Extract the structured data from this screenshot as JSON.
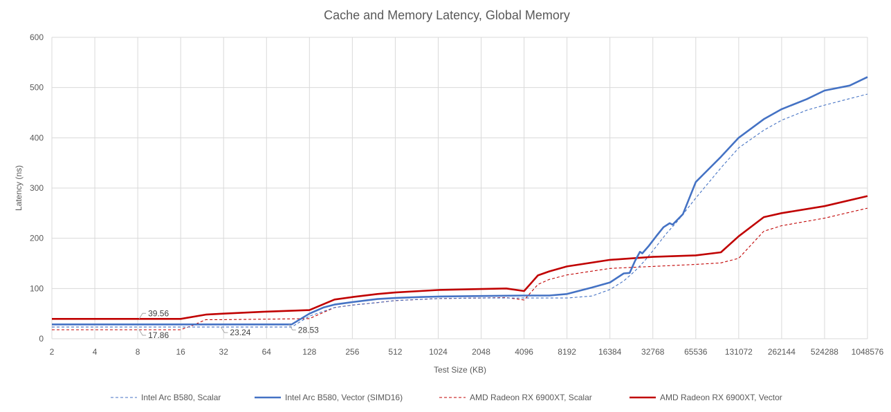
{
  "chart_data": {
    "type": "line",
    "title": "Cache and Memory Latency, Global Memory",
    "xlabel": "Test Size (KB)",
    "ylabel": "Latency (ns)",
    "x_scale": "log2",
    "xlim": [
      2,
      1048576
    ],
    "ylim": [
      0,
      600
    ],
    "x_ticks": [
      2,
      4,
      8,
      16,
      32,
      64,
      128,
      256,
      512,
      1024,
      2048,
      4096,
      8192,
      16384,
      32768,
      65536,
      131072,
      262144,
      524288,
      1048576
    ],
    "x_tick_labels": [
      "2",
      "4",
      "8",
      "16",
      "32",
      "64",
      "128",
      "256",
      "512",
      "1024",
      "2048",
      "4096",
      "8192",
      "16384",
      "32768",
      "65536",
      "131072",
      "262144",
      "524288",
      "1048576"
    ],
    "y_ticks": [
      0,
      100,
      200,
      300,
      400,
      500,
      600
    ],
    "y_tick_labels": [
      "0",
      "100",
      "200",
      "300",
      "400",
      "500",
      "600"
    ],
    "grid": true,
    "legend_position": "bottom",
    "series": [
      {
        "name": "Intel Arc B580, Scalar",
        "color": "#4472c4",
        "dash": "dashed",
        "width": "thin",
        "points": [
          [
            2,
            23.24
          ],
          [
            16,
            23.24
          ],
          [
            32,
            23.24
          ],
          [
            64,
            23.24
          ],
          [
            96,
            23.24
          ],
          [
            128,
            45
          ],
          [
            192,
            62
          ],
          [
            256,
            67
          ],
          [
            384,
            72
          ],
          [
            512,
            76
          ],
          [
            1024,
            80
          ],
          [
            2048,
            81
          ],
          [
            4096,
            81
          ],
          [
            8192,
            81
          ],
          [
            12288,
            85
          ],
          [
            16384,
            98
          ],
          [
            20480,
            115
          ],
          [
            24576,
            135
          ],
          [
            28672,
            155
          ],
          [
            32768,
            175
          ],
          [
            40960,
            210
          ],
          [
            49152,
            235
          ],
          [
            65536,
            280
          ],
          [
            98304,
            340
          ],
          [
            131072,
            380
          ],
          [
            196608,
            415
          ],
          [
            262144,
            435
          ],
          [
            393216,
            455
          ],
          [
            524288,
            465
          ],
          [
            786432,
            478
          ],
          [
            1048576,
            487
          ]
        ]
      },
      {
        "name": "Intel Arc B580, Vector (SIMD16)",
        "color": "#4472c4",
        "dash": "solid",
        "width": "thick",
        "points": [
          [
            2,
            28.53
          ],
          [
            16,
            28.53
          ],
          [
            32,
            28.53
          ],
          [
            64,
            28.53
          ],
          [
            96,
            28.53
          ],
          [
            128,
            50
          ],
          [
            160,
            62
          ],
          [
            192,
            68
          ],
          [
            256,
            73
          ],
          [
            384,
            79
          ],
          [
            512,
            81
          ],
          [
            768,
            83
          ],
          [
            1024,
            84
          ],
          [
            2048,
            85
          ],
          [
            4096,
            86
          ],
          [
            6144,
            86
          ],
          [
            8192,
            89
          ],
          [
            12288,
            102
          ],
          [
            16384,
            112
          ],
          [
            20480,
            130
          ],
          [
            22528,
            131
          ],
          [
            24576,
            155
          ],
          [
            26624,
            173
          ],
          [
            27648,
            170
          ],
          [
            30720,
            185
          ],
          [
            34816,
            205
          ],
          [
            38912,
            222
          ],
          [
            43008,
            230
          ],
          [
            45056,
            227
          ],
          [
            53248,
            248
          ],
          [
            65536,
            312
          ],
          [
            98304,
            362
          ],
          [
            131072,
            400
          ],
          [
            196608,
            437
          ],
          [
            262144,
            457
          ],
          [
            393216,
            477
          ],
          [
            524288,
            494
          ],
          [
            786432,
            504
          ],
          [
            917504,
            513
          ],
          [
            1048576,
            521
          ]
        ]
      },
      {
        "name": "AMD Radeon RX 6900XT, Scalar",
        "color": "#c00000",
        "dash": "dashed",
        "width": "thin",
        "points": [
          [
            2,
            17.86
          ],
          [
            16,
            17.86
          ],
          [
            20,
            28
          ],
          [
            24,
            38
          ],
          [
            32,
            38
          ],
          [
            64,
            39
          ],
          [
            128,
            40
          ],
          [
            192,
            62
          ],
          [
            256,
            67
          ],
          [
            384,
            72
          ],
          [
            512,
            76
          ],
          [
            1024,
            80
          ],
          [
            2048,
            81
          ],
          [
            3072,
            82
          ],
          [
            4096,
            77
          ],
          [
            5120,
            108
          ],
          [
            6144,
            118
          ],
          [
            8192,
            127
          ],
          [
            16384,
            140
          ],
          [
            32768,
            144
          ],
          [
            65536,
            148
          ],
          [
            98304,
            151
          ],
          [
            131072,
            160
          ],
          [
            196608,
            214
          ],
          [
            262144,
            225
          ],
          [
            524288,
            240
          ],
          [
            1048576,
            260
          ]
        ]
      },
      {
        "name": "AMD Radeon RX 6900XT, Vector",
        "color": "#c00000",
        "dash": "solid",
        "width": "thick",
        "points": [
          [
            2,
            39.56
          ],
          [
            16,
            39.56
          ],
          [
            24,
            48
          ],
          [
            32,
            50
          ],
          [
            64,
            54
          ],
          [
            128,
            57
          ],
          [
            192,
            78
          ],
          [
            256,
            83
          ],
          [
            384,
            89
          ],
          [
            512,
            92
          ],
          [
            768,
            95
          ],
          [
            1024,
            97
          ],
          [
            2048,
            99
          ],
          [
            3072,
            100
          ],
          [
            4096,
            95
          ],
          [
            5120,
            126
          ],
          [
            6144,
            134
          ],
          [
            8192,
            144
          ],
          [
            16384,
            157
          ],
          [
            32768,
            163
          ],
          [
            65536,
            166
          ],
          [
            98304,
            172
          ],
          [
            131072,
            204
          ],
          [
            196608,
            242
          ],
          [
            262144,
            250
          ],
          [
            524288,
            264
          ],
          [
            1048576,
            284
          ]
        ]
      }
    ],
    "annotations": [
      {
        "text": "39.56",
        "x": 8,
        "y": 39.56,
        "label_side": "above"
      },
      {
        "text": "17.86",
        "x": 8,
        "y": 17.86,
        "label_side": "below"
      },
      {
        "text": "23.24",
        "x": 30,
        "y": 23.24,
        "label_side": "below"
      },
      {
        "text": "28.53",
        "x": 90,
        "y": 28.53,
        "label_side": "below"
      }
    ]
  }
}
